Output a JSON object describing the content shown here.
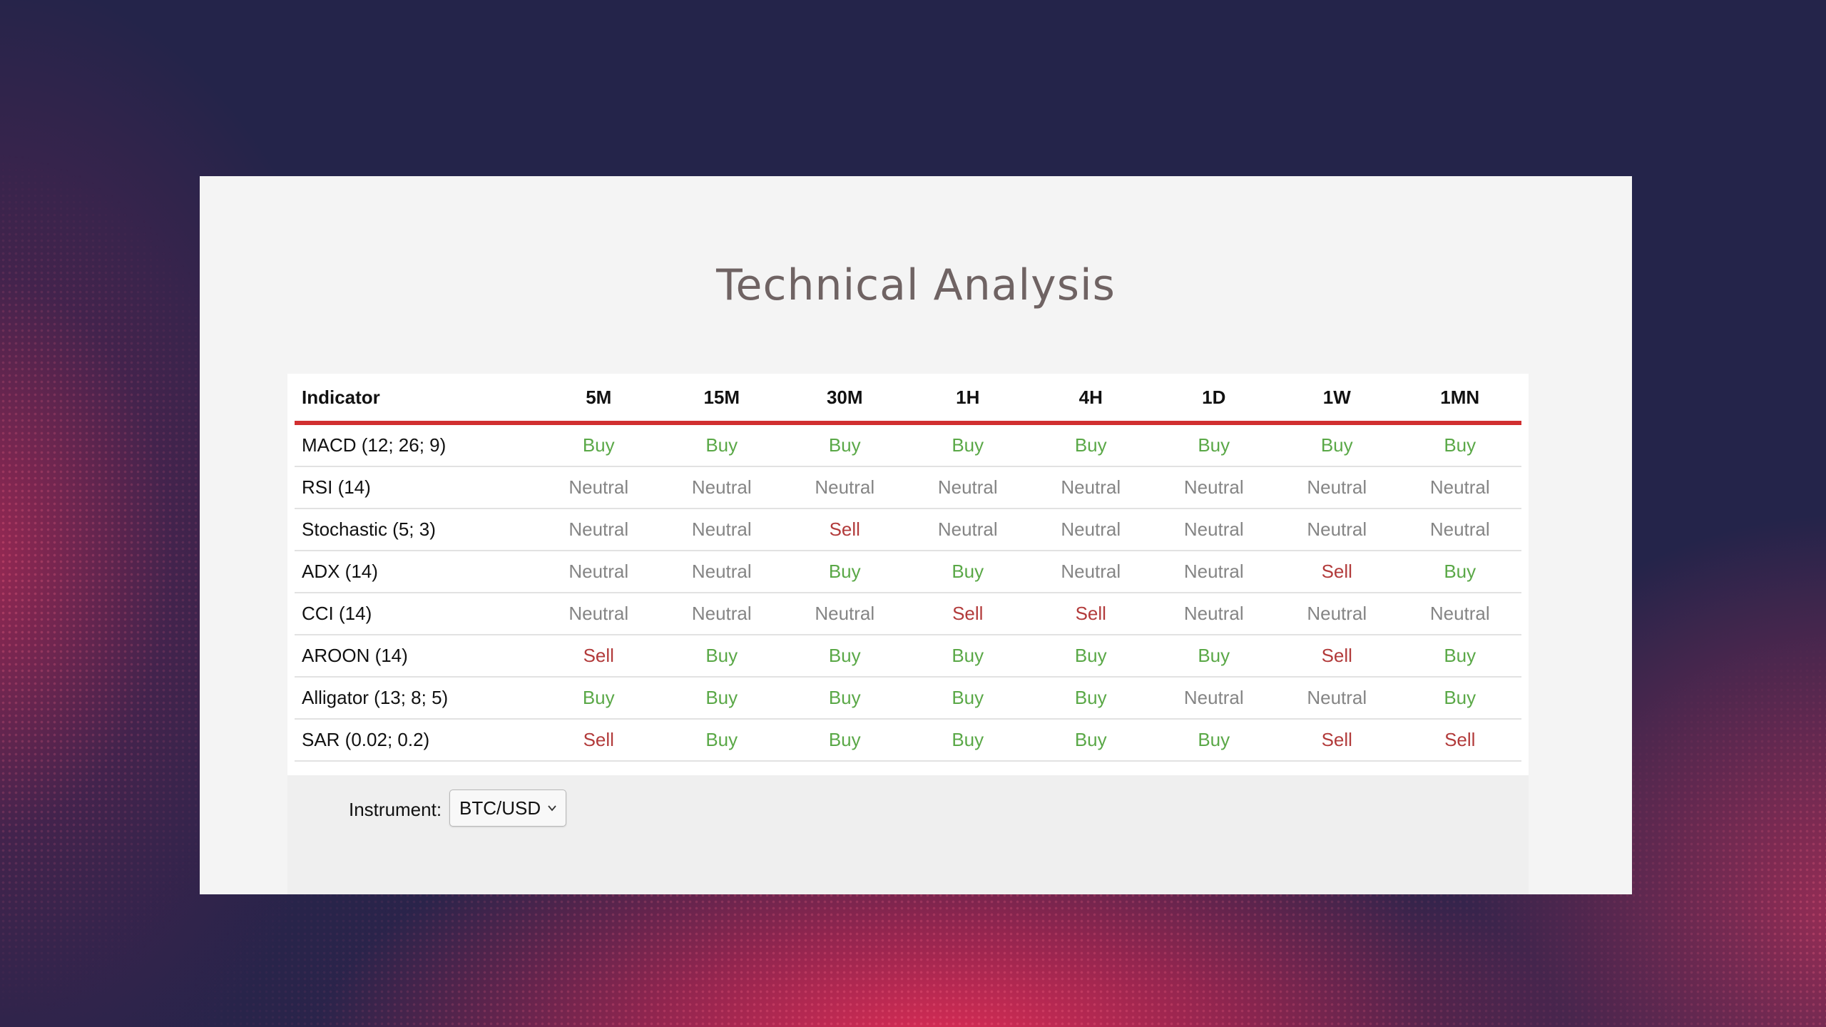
{
  "page": {
    "title": "Technical Analysis"
  },
  "colors": {
    "buy": "#5aa847",
    "sell": "#b23b3b",
    "neutral": "#858585",
    "header_rule": "#d12f30",
    "background": "#24244a"
  },
  "table": {
    "columns": [
      "Indicator",
      "5M",
      "15M",
      "30M",
      "1H",
      "4H",
      "1D",
      "1W",
      "1MN"
    ],
    "rows": [
      {
        "indicator": "MACD (12; 26; 9)",
        "signals": [
          "Buy",
          "Buy",
          "Buy",
          "Buy",
          "Buy",
          "Buy",
          "Buy",
          "Buy"
        ]
      },
      {
        "indicator": "RSI (14)",
        "signals": [
          "Neutral",
          "Neutral",
          "Neutral",
          "Neutral",
          "Neutral",
          "Neutral",
          "Neutral",
          "Neutral"
        ]
      },
      {
        "indicator": "Stochastic (5; 3)",
        "signals": [
          "Neutral",
          "Neutral",
          "Sell",
          "Neutral",
          "Neutral",
          "Neutral",
          "Neutral",
          "Neutral"
        ]
      },
      {
        "indicator": "ADX (14)",
        "signals": [
          "Neutral",
          "Neutral",
          "Buy",
          "Buy",
          "Neutral",
          "Neutral",
          "Sell",
          "Buy"
        ]
      },
      {
        "indicator": "CCI (14)",
        "signals": [
          "Neutral",
          "Neutral",
          "Neutral",
          "Sell",
          "Sell",
          "Neutral",
          "Neutral",
          "Neutral"
        ]
      },
      {
        "indicator": "AROON (14)",
        "signals": [
          "Sell",
          "Buy",
          "Buy",
          "Buy",
          "Buy",
          "Buy",
          "Sell",
          "Buy"
        ]
      },
      {
        "indicator": "Alligator (13; 8; 5)",
        "signals": [
          "Buy",
          "Buy",
          "Buy",
          "Buy",
          "Buy",
          "Neutral",
          "Neutral",
          "Buy"
        ]
      },
      {
        "indicator": "SAR (0.02; 0.2)",
        "signals": [
          "Sell",
          "Buy",
          "Buy",
          "Buy",
          "Buy",
          "Buy",
          "Sell",
          "Sell"
        ]
      }
    ]
  },
  "instrument": {
    "label": "Instrument:",
    "selected": "BTC/USD",
    "icon": "chevron-down-icon"
  }
}
